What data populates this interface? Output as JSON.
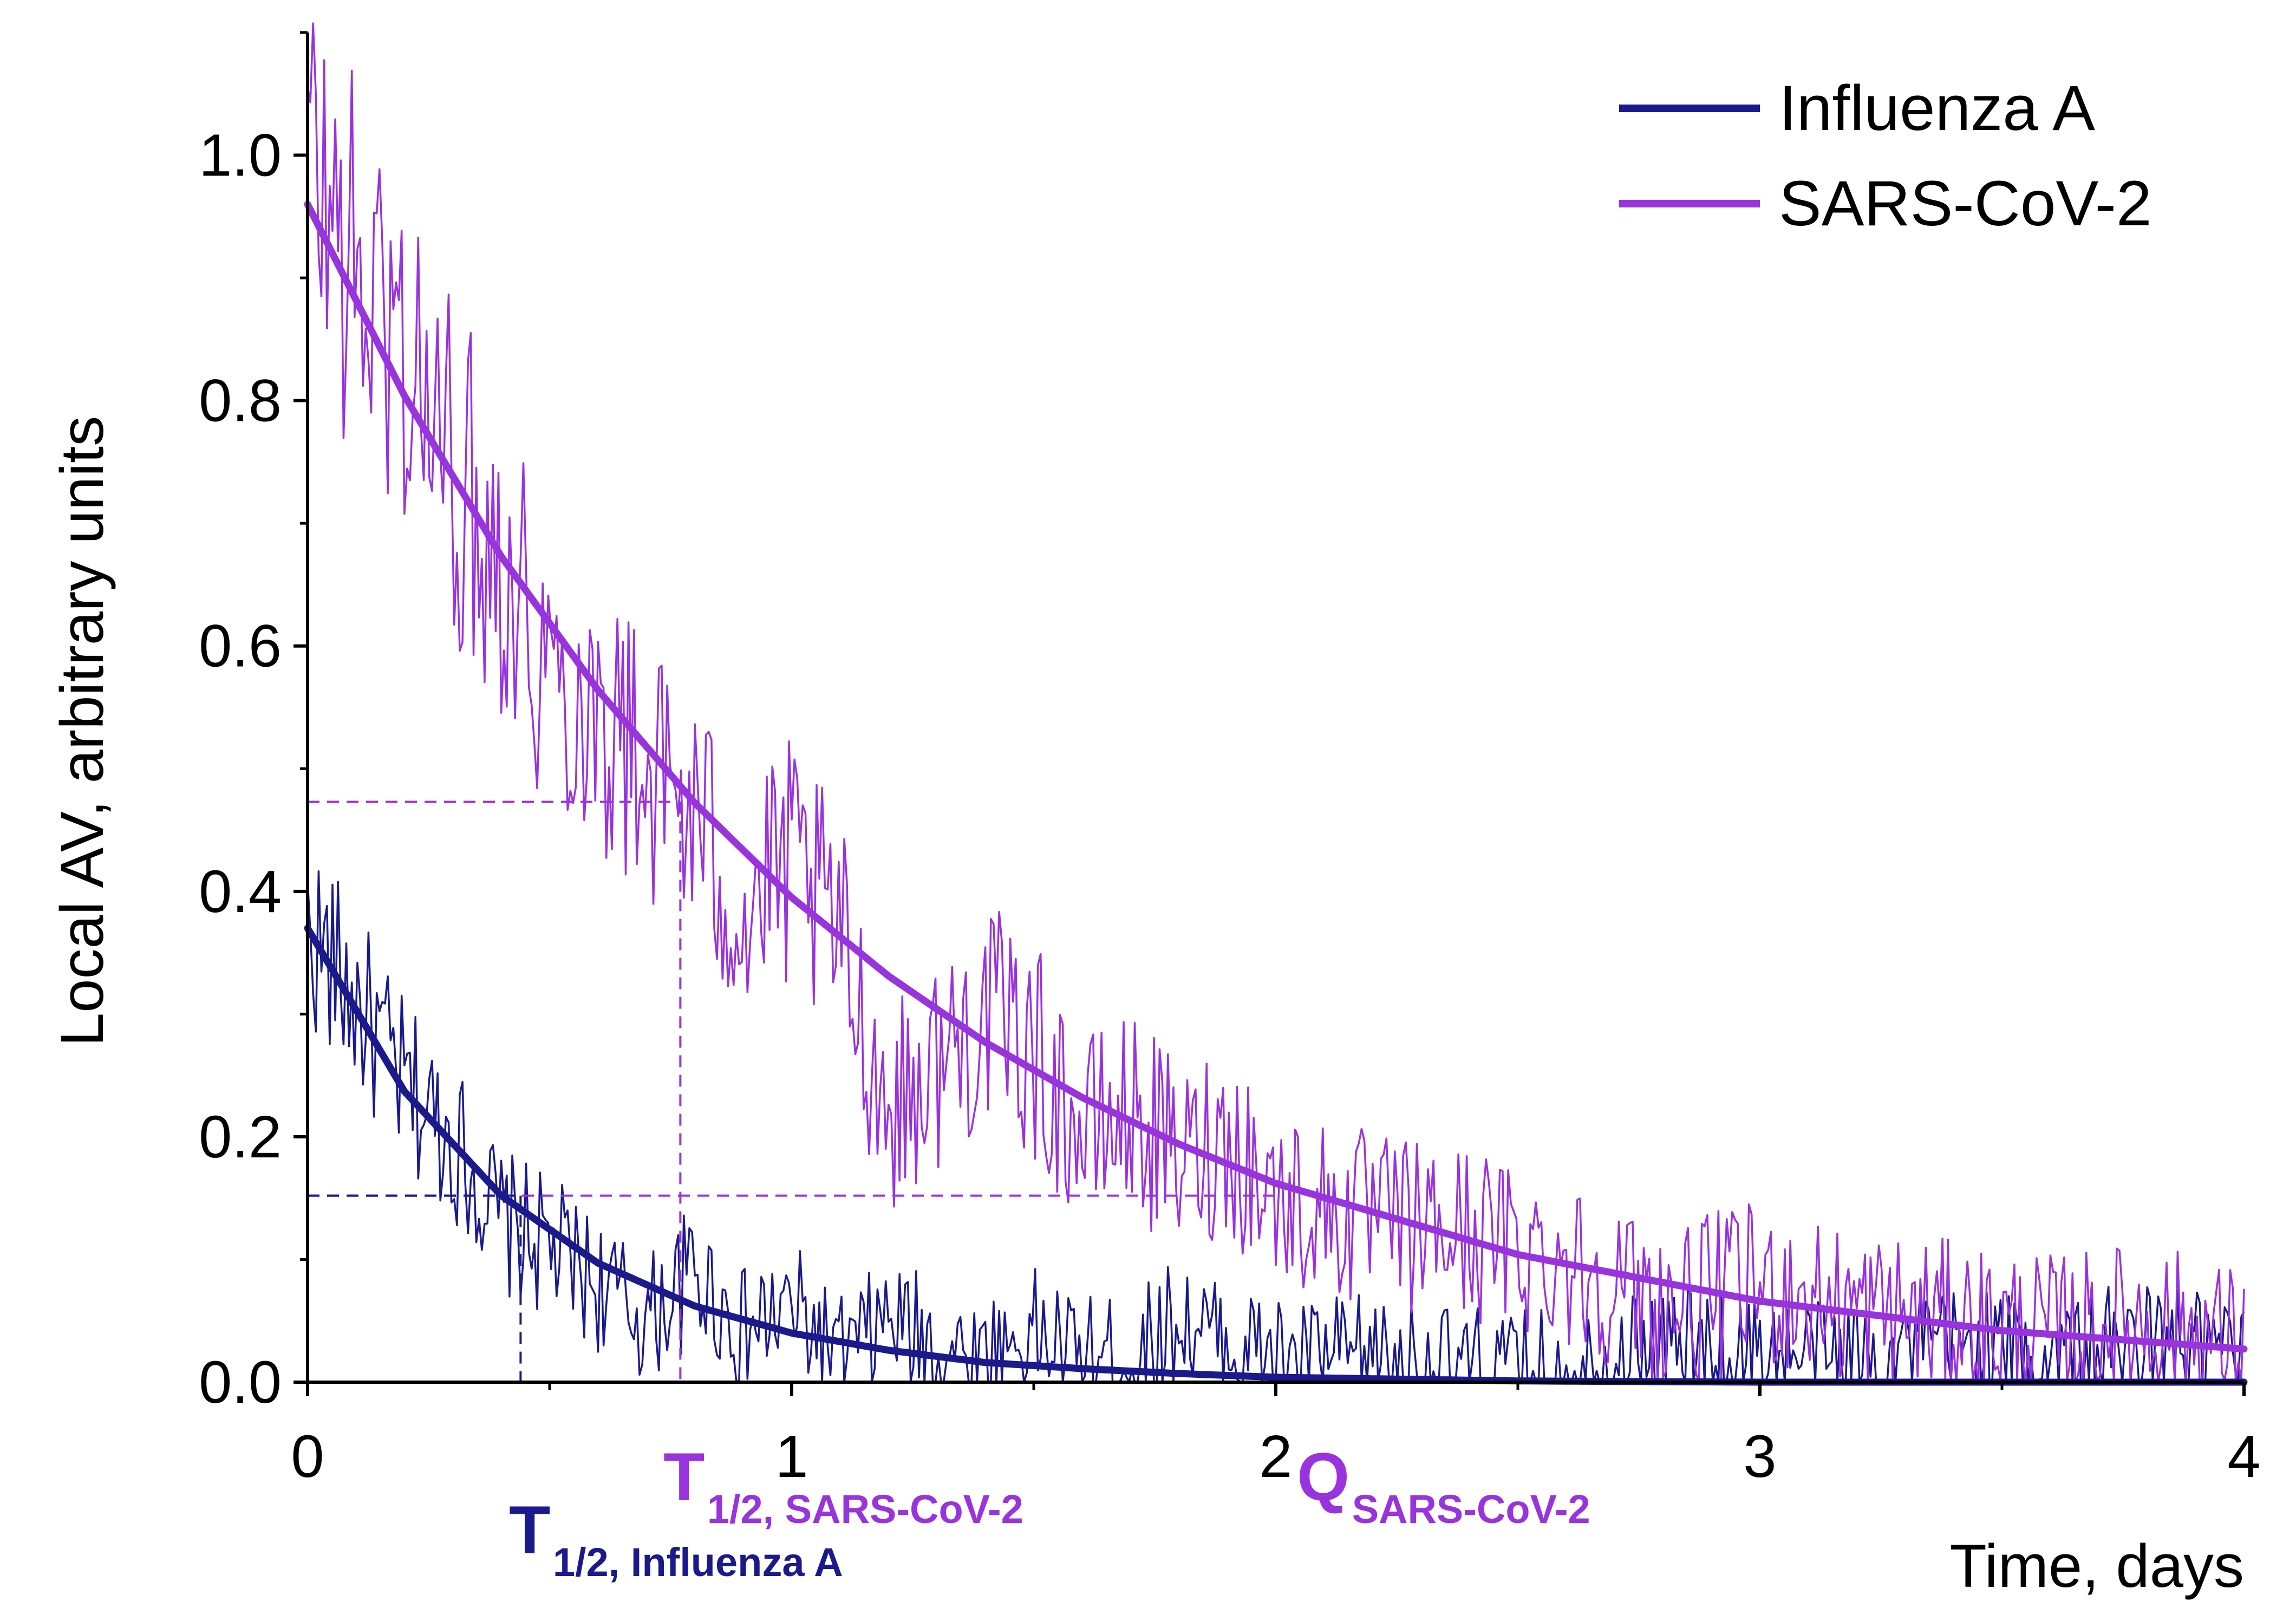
{
  "chart_data": {
    "type": "line",
    "title": "",
    "xlabel": "Time, days",
    "ylabel": "Local AV, arbitrary units",
    "xlim": [
      0,
      4
    ],
    "ylim": [
      0,
      1.1
    ],
    "x_ticks": [
      0,
      1,
      2,
      3,
      4
    ],
    "x_tick_labels": [
      "0",
      "1",
      "2",
      "3",
      "4"
    ],
    "y_ticks": [
      0.0,
      0.2,
      0.4,
      0.6,
      0.8,
      1.0
    ],
    "y_tick_labels": [
      "0.0",
      "0.2",
      "0.4",
      "0.6",
      "0.8",
      "1.0"
    ],
    "legend_position": "top-right",
    "series": [
      {
        "name": "Influenza A",
        "color": "#1a1a8c",
        "raw_x": [
          0.0,
          0.1,
          0.2,
          0.3,
          0.4,
          0.5,
          0.6,
          0.7,
          0.8,
          0.9,
          1.0,
          1.1,
          1.2,
          1.3,
          1.4,
          1.5,
          1.6,
          1.7,
          1.8,
          1.9,
          2.0,
          2.2,
          2.4,
          2.6,
          2.8,
          3.0,
          3.2,
          3.4,
          3.6,
          3.8,
          4.0
        ],
        "raw_values": [
          0.37,
          0.31,
          0.24,
          0.2,
          0.13,
          0.11,
          0.08,
          0.05,
          0.09,
          0.04,
          0.06,
          0.02,
          0.05,
          0.03,
          0.02,
          0.04,
          0.02,
          0.02,
          0.05,
          0.03,
          0.02,
          0.02,
          0.01,
          0.01,
          0.03,
          0.02,
          0.02,
          0.03,
          0.02,
          0.03,
          0.02
        ],
        "fit_x": [
          0.0,
          0.2,
          0.4,
          0.6,
          0.8,
          1.0,
          1.2,
          1.4,
          1.6,
          1.8,
          2.0,
          2.5,
          3.0,
          3.5,
          4.0
        ],
        "fit_values": [
          0.37,
          0.237,
          0.152,
          0.097,
          0.062,
          0.04,
          0.026,
          0.016,
          0.011,
          0.007,
          0.004,
          0.001,
          0.0,
          0.0,
          0.0
        ]
      },
      {
        "name": "SARS-CoV-2",
        "color": "#9933dd",
        "raw_x": [
          0.0,
          0.1,
          0.2,
          0.3,
          0.4,
          0.5,
          0.6,
          0.7,
          0.8,
          0.9,
          1.0,
          1.1,
          1.2,
          1.3,
          1.4,
          1.5,
          1.6,
          1.7,
          1.8,
          1.9,
          2.0,
          2.2,
          2.4,
          2.6,
          2.8,
          3.0,
          3.2,
          3.4,
          3.6,
          3.8,
          4.0
        ],
        "raw_values": [
          1.0,
          0.9,
          0.84,
          0.74,
          0.68,
          0.58,
          0.55,
          0.5,
          0.46,
          0.38,
          0.42,
          0.36,
          0.22,
          0.26,
          0.3,
          0.27,
          0.2,
          0.22,
          0.18,
          0.2,
          0.15,
          0.13,
          0.12,
          0.1,
          0.06,
          0.08,
          0.06,
          0.05,
          0.04,
          0.05,
          0.03
        ],
        "fit_x": [
          0.0,
          0.2,
          0.4,
          0.6,
          0.8,
          1.0,
          1.2,
          1.4,
          1.6,
          1.8,
          2.0,
          2.5,
          3.0,
          3.5,
          4.0
        ],
        "fit_values": [
          0.96,
          0.804,
          0.673,
          0.564,
          0.472,
          0.395,
          0.331,
          0.277,
          0.232,
          0.194,
          0.162,
          0.104,
          0.066,
          0.042,
          0.027
        ]
      }
    ],
    "guides": [
      {
        "series": "SARS-CoV-2",
        "y": 0.473,
        "x_end": 0.77,
        "color": "#9933dd"
      },
      {
        "series": "SARS-CoV-2",
        "y": 0.152,
        "x_end": 2.0,
        "color": "#9933dd"
      },
      {
        "series": "Influenza A",
        "y": 0.152,
        "x_end": 0.44,
        "color": "#1a1a8c"
      }
    ],
    "annotations": [
      {
        "id": "t_half_influenza",
        "main": "T",
        "sub": "1/2, Influenza A",
        "x": 0.44,
        "color": "#1a1a8c"
      },
      {
        "id": "t_half_sars",
        "main": "T",
        "sub": "1/2, SARS-CoV-2",
        "x": 0.77,
        "color": "#9933dd"
      },
      {
        "id": "q_sars",
        "main": "Q",
        "sub": "SARS-CoV-2",
        "x": 2.0,
        "color": "#9933dd"
      }
    ]
  }
}
